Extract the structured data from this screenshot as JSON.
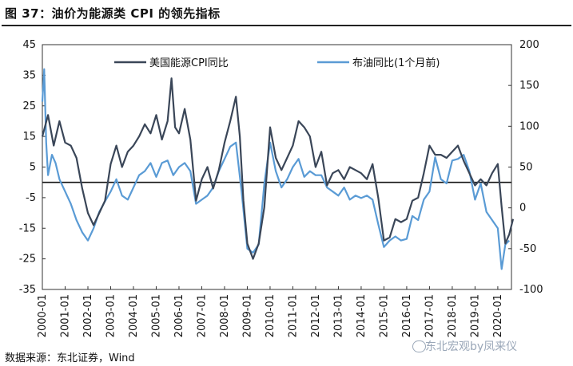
{
  "figure": {
    "title": "图 37：油价为能源类 CPI 的领先指标",
    "source": "数据来源：东北证券，Wind",
    "watermark": "东北宏观by凤来仪"
  },
  "chart_data": {
    "type": "line",
    "title": "图 37：油价为能源类 CPI 的领先指标",
    "x_ticks": [
      "2000-01",
      "2001-01",
      "2002-01",
      "2003-01",
      "2004-01",
      "2005-01",
      "2006-01",
      "2007-01",
      "2008-01",
      "2009-01",
      "2010-01",
      "2011-01",
      "2012-01",
      "2013-01",
      "2014-01",
      "2015-01",
      "2016-01",
      "2017-01",
      "2018-01",
      "2019-01",
      "2020-01"
    ],
    "y_left": {
      "range": [
        -35,
        45
      ],
      "ticks": [
        45,
        35,
        25,
        15,
        5,
        -5,
        -15,
        -25,
        -35
      ]
    },
    "y_right": {
      "range": [
        -100,
        200
      ],
      "ticks": [
        200,
        150,
        100,
        50,
        0,
        -50,
        -100
      ]
    },
    "zero_reference_line": {
      "axis": "left",
      "value": 0
    },
    "legend_placement": "top",
    "series": [
      {
        "name": "美国能源CPI同比",
        "axis": "left",
        "color": "#3a4658",
        "x": [
          2000.0,
          2000.25,
          2000.5,
          2000.75,
          2001.0,
          2001.25,
          2001.5,
          2001.75,
          2002.0,
          2002.25,
          2002.5,
          2002.75,
          2003.0,
          2003.25,
          2003.5,
          2003.75,
          2004.0,
          2004.25,
          2004.5,
          2004.75,
          2005.0,
          2005.25,
          2005.5,
          2005.67,
          2005.83,
          2006.0,
          2006.25,
          2006.5,
          2006.75,
          2007.0,
          2007.25,
          2007.5,
          2007.75,
          2008.0,
          2008.25,
          2008.5,
          2008.67,
          2008.83,
          2009.0,
          2009.25,
          2009.5,
          2009.75,
          2010.0,
          2010.25,
          2010.5,
          2010.75,
          2011.0,
          2011.25,
          2011.5,
          2011.75,
          2012.0,
          2012.25,
          2012.5,
          2012.75,
          2013.0,
          2013.25,
          2013.5,
          2013.75,
          2014.0,
          2014.25,
          2014.5,
          2014.75,
          2015.0,
          2015.25,
          2015.5,
          2015.75,
          2016.0,
          2016.25,
          2016.5,
          2016.75,
          2017.0,
          2017.25,
          2017.5,
          2017.75,
          2018.0,
          2018.25,
          2018.5,
          2018.75,
          2019.0,
          2019.25,
          2019.5,
          2019.75,
          2020.0,
          2020.17,
          2020.33,
          2020.5,
          2020.67
        ],
        "values": [
          15,
          22,
          12,
          20,
          13,
          12,
          8,
          -2,
          -10,
          -14,
          -10,
          -6,
          6,
          12,
          5,
          10,
          12,
          15,
          19,
          16,
          22,
          14,
          20,
          34,
          18,
          16,
          24,
          14,
          -6,
          1,
          5,
          -2,
          4,
          13,
          20,
          28,
          15,
          -6,
          -20,
          -25,
          -20,
          -8,
          18,
          8,
          4,
          8,
          12,
          20,
          18,
          15,
          5,
          10,
          -1,
          3,
          4,
          1,
          5,
          4,
          3,
          1,
          6,
          -5,
          -19,
          -18,
          -12,
          -13,
          -12,
          -6,
          -5,
          3,
          12,
          9,
          9,
          8,
          10,
          12,
          7,
          3,
          -1,
          1,
          -1,
          3,
          6,
          -8,
          -20,
          -17,
          -12
        ]
      },
      {
        "name": "布油同比(1个月前)",
        "axis": "right",
        "color": "#5a9bd5",
        "x": [
          2000.0,
          2000.08,
          2000.17,
          2000.25,
          2000.42,
          2000.58,
          2000.75,
          2001.0,
          2001.25,
          2001.5,
          2001.75,
          2002.0,
          2002.25,
          2002.5,
          2002.75,
          2003.0,
          2003.25,
          2003.5,
          2003.75,
          2004.0,
          2004.25,
          2004.5,
          2004.75,
          2005.0,
          2005.25,
          2005.5,
          2005.75,
          2006.0,
          2006.25,
          2006.5,
          2006.75,
          2007.0,
          2007.25,
          2007.5,
          2007.75,
          2008.0,
          2008.25,
          2008.5,
          2008.75,
          2009.0,
          2009.25,
          2009.5,
          2009.75,
          2010.0,
          2010.25,
          2010.5,
          2010.75,
          2011.0,
          2011.25,
          2011.5,
          2011.75,
          2012.0,
          2012.25,
          2012.5,
          2012.75,
          2013.0,
          2013.25,
          2013.5,
          2013.75,
          2014.0,
          2014.25,
          2014.5,
          2014.75,
          2015.0,
          2015.25,
          2015.5,
          2015.75,
          2016.0,
          2016.25,
          2016.5,
          2016.75,
          2017.0,
          2017.25,
          2017.5,
          2017.75,
          2018.0,
          2018.25,
          2018.5,
          2018.75,
          2019.0,
          2019.25,
          2019.5,
          2019.75,
          2020.0,
          2020.17,
          2020.33,
          2020.5
        ],
        "values": [
          130,
          170,
          80,
          40,
          65,
          55,
          35,
          20,
          5,
          -15,
          -30,
          -40,
          -25,
          -5,
          8,
          20,
          35,
          15,
          10,
          25,
          40,
          45,
          55,
          38,
          55,
          58,
          40,
          50,
          55,
          45,
          5,
          10,
          15,
          25,
          45,
          60,
          75,
          80,
          20,
          -50,
          -55,
          -45,
          30,
          80,
          45,
          25,
          35,
          50,
          60,
          38,
          45,
          40,
          40,
          25,
          20,
          15,
          25,
          10,
          15,
          12,
          15,
          10,
          -20,
          -48,
          -40,
          -35,
          -40,
          -38,
          -10,
          -15,
          10,
          20,
          62,
          35,
          30,
          58,
          60,
          65,
          45,
          10,
          30,
          -5,
          -15,
          -25,
          -75,
          -45,
          -40
        ]
      }
    ]
  }
}
